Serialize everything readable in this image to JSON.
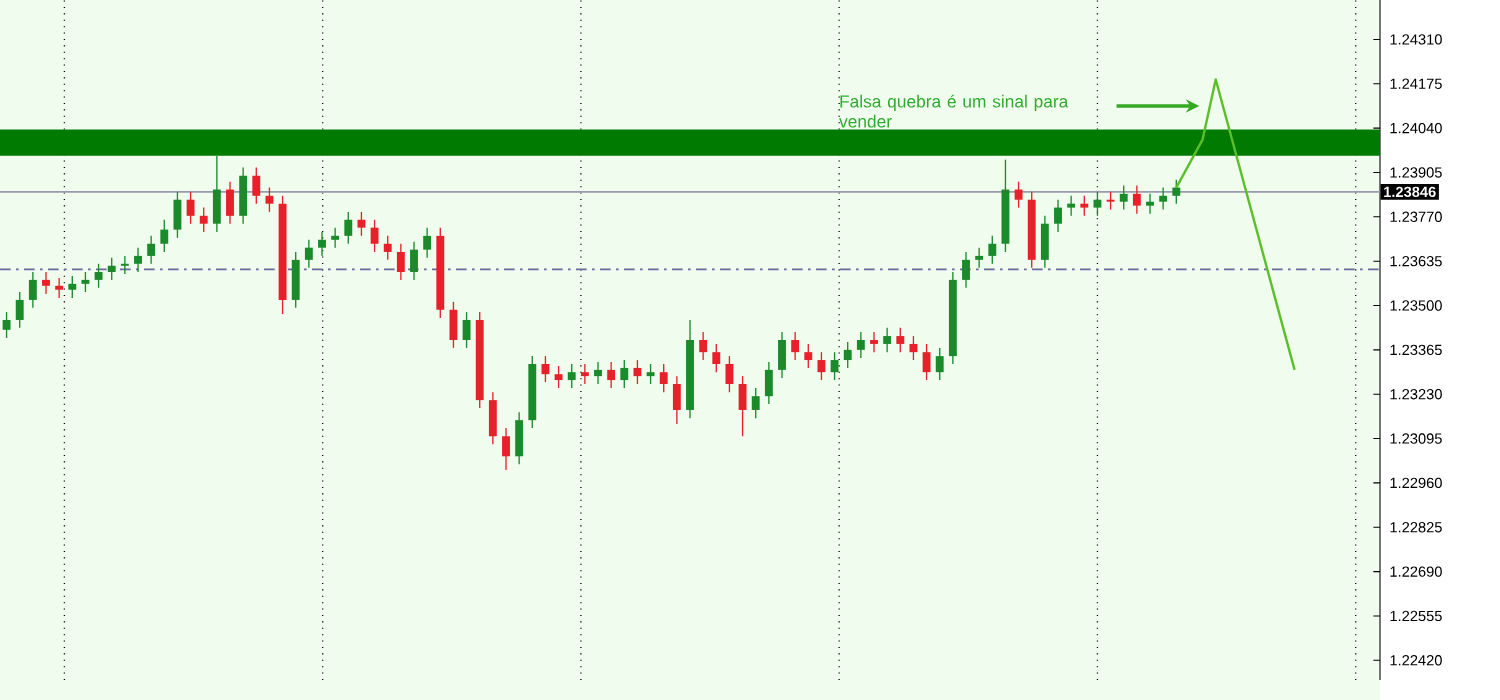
{
  "chart_data": {
    "type": "candlestick",
    "categories": [
      null,
      null,
      null,
      null,
      null,
      null,
      null,
      null,
      null,
      null,
      null,
      null,
      null,
      null,
      null,
      null,
      null,
      null,
      null,
      null,
      null,
      null,
      null,
      null,
      null,
      null,
      null,
      null,
      null,
      null,
      null,
      null,
      null,
      null,
      null,
      null,
      null,
      null,
      null,
      null,
      null,
      null,
      null,
      null,
      null,
      null,
      null,
      null,
      null,
      null,
      null,
      null,
      null,
      null,
      null,
      null,
      null,
      null,
      null,
      null,
      null,
      null,
      null,
      null,
      null,
      null,
      null,
      null,
      null,
      null,
      null,
      null,
      null,
      null,
      null,
      null,
      null,
      null,
      null,
      null,
      null,
      null,
      null,
      null,
      null,
      null,
      null,
      null,
      null,
      null,
      null,
      null,
      null,
      null,
      null,
      null,
      null,
      null,
      null,
      null,
      null,
      null,
      null,
      null,
      null
    ],
    "ohlc": [
      [
        1.23426,
        1.2348,
        1.23401,
        1.23456
      ],
      [
        1.23456,
        1.23541,
        1.23432,
        1.23517
      ],
      [
        1.23517,
        1.23602,
        1.23493,
        1.23578
      ],
      [
        1.23578,
        1.23602,
        1.23535,
        1.2356
      ],
      [
        1.2356,
        1.23584,
        1.23523,
        1.23548
      ],
      [
        1.23548,
        1.2359,
        1.23523,
        1.23566
      ],
      [
        1.23566,
        1.23602,
        1.23541,
        1.23578
      ],
      [
        1.23578,
        1.23627,
        1.23554,
        1.23602
      ],
      [
        1.23602,
        1.23645,
        1.23578,
        1.23621
      ],
      [
        1.23621,
        1.23651,
        1.23596,
        1.23627
      ],
      [
        1.23627,
        1.23676,
        1.23602,
        1.23651
      ],
      [
        1.23651,
        1.23712,
        1.23627,
        1.23688
      ],
      [
        1.23688,
        1.23761,
        1.23663,
        1.23731
      ],
      [
        1.23731,
        1.23846,
        1.23706,
        1.23822
      ],
      [
        1.23822,
        1.23846,
        1.23749,
        1.23773
      ],
      [
        1.23773,
        1.23798,
        1.23724,
        1.23749
      ],
      [
        1.23749,
        1.23956,
        1.23724,
        1.23853
      ],
      [
        1.23853,
        1.23877,
        1.23749,
        1.23773
      ],
      [
        1.23773,
        1.2392,
        1.23749,
        1.23895
      ],
      [
        1.23895,
        1.2392,
        1.2381,
        1.23834
      ],
      [
        1.23834,
        1.23859,
        1.23785,
        1.2381
      ],
      [
        1.2381,
        1.23834,
        1.23474,
        1.23517
      ],
      [
        1.23517,
        1.23663,
        1.23493,
        1.23639
      ],
      [
        1.23639,
        1.237,
        1.23615,
        1.23676
      ],
      [
        1.23676,
        1.23724,
        1.23651,
        1.237
      ],
      [
        1.237,
        1.23737,
        1.23676,
        1.23712
      ],
      [
        1.23712,
        1.23785,
        1.23688,
        1.23761
      ],
      [
        1.23761,
        1.23785,
        1.23712,
        1.23737
      ],
      [
        1.23737,
        1.23761,
        1.23663,
        1.23688
      ],
      [
        1.23688,
        1.23712,
        1.23639,
        1.23663
      ],
      [
        1.23663,
        1.23688,
        1.23578,
        1.23602
      ],
      [
        1.23602,
        1.23694,
        1.23578,
        1.2367
      ],
      [
        1.2367,
        1.23737,
        1.23645,
        1.23712
      ],
      [
        1.23712,
        1.23737,
        1.23462,
        1.23487
      ],
      [
        1.23487,
        1.23511,
        1.23371,
        1.23395
      ],
      [
        1.23395,
        1.2348,
        1.23371,
        1.23456
      ],
      [
        1.23456,
        1.2348,
        1.23188,
        1.23212
      ],
      [
        1.23212,
        1.23236,
        1.23078,
        1.23102
      ],
      [
        1.23102,
        1.23127,
        1.22999,
        1.23041
      ],
      [
        1.23041,
        1.23175,
        1.23017,
        1.23151
      ],
      [
        1.23151,
        1.23346,
        1.23127,
        1.23322
      ],
      [
        1.23322,
        1.23346,
        1.23267,
        1.23291
      ],
      [
        1.23291,
        1.23316,
        1.23249,
        1.23273
      ],
      [
        1.23273,
        1.23322,
        1.23249,
        1.23297
      ],
      [
        1.23297,
        1.23322,
        1.23261,
        1.23285
      ],
      [
        1.23285,
        1.23328,
        1.23261,
        1.23304
      ],
      [
        1.23304,
        1.23328,
        1.23249,
        1.23273
      ],
      [
        1.23273,
        1.23334,
        1.23249,
        1.2331
      ],
      [
        1.2331,
        1.23334,
        1.23261,
        1.23285
      ],
      [
        1.23285,
        1.23322,
        1.23261,
        1.23297
      ],
      [
        1.23297,
        1.23322,
        1.23236,
        1.23261
      ],
      [
        1.23261,
        1.23285,
        1.23139,
        1.23182
      ],
      [
        1.23182,
        1.23456,
        1.23157,
        1.23395
      ],
      [
        1.23395,
        1.23419,
        1.23334,
        1.23358
      ],
      [
        1.23358,
        1.23383,
        1.23297,
        1.23322
      ],
      [
        1.23322,
        1.23346,
        1.23236,
        1.23261
      ],
      [
        1.23261,
        1.23285,
        1.23102,
        1.23182
      ],
      [
        1.23182,
        1.23249,
        1.23157,
        1.23224
      ],
      [
        1.23224,
        1.23328,
        1.232,
        1.23304
      ],
      [
        1.23304,
        1.23419,
        1.23279,
        1.23395
      ],
      [
        1.23395,
        1.23419,
        1.23334,
        1.23358
      ],
      [
        1.23358,
        1.23383,
        1.2331,
        1.23334
      ],
      [
        1.23334,
        1.23358,
        1.23273,
        1.23297
      ],
      [
        1.23297,
        1.23358,
        1.23273,
        1.23334
      ],
      [
        1.23334,
        1.23389,
        1.2331,
        1.23365
      ],
      [
        1.23365,
        1.23419,
        1.2334,
        1.23395
      ],
      [
        1.23395,
        1.23419,
        1.23358,
        1.23383
      ],
      [
        1.23383,
        1.23432,
        1.23358,
        1.23407
      ],
      [
        1.23407,
        1.23432,
        1.23358,
        1.23383
      ],
      [
        1.23383,
        1.23407,
        1.23334,
        1.23358
      ],
      [
        1.23358,
        1.23383,
        1.23273,
        1.23297
      ],
      [
        1.23297,
        1.23371,
        1.23273,
        1.23346
      ],
      [
        1.23346,
        1.23602,
        1.23322,
        1.23578
      ],
      [
        1.23578,
        1.23663,
        1.23554,
        1.23639
      ],
      [
        1.23639,
        1.23676,
        1.23615,
        1.23651
      ],
      [
        1.23651,
        1.23712,
        1.23627,
        1.23688
      ],
      [
        1.23688,
        1.23944,
        1.23663,
        1.23853
      ],
      [
        1.23853,
        1.23877,
        1.23798,
        1.23822
      ],
      [
        1.23822,
        1.23846,
        1.23615,
        1.23639
      ],
      [
        1.23639,
        1.23773,
        1.23615,
        1.23749
      ],
      [
        1.23749,
        1.23822,
        1.23724,
        1.23798
      ],
      [
        1.23798,
        1.23834,
        1.23773,
        1.2381
      ],
      [
        1.2381,
        1.23834,
        1.23773,
        1.23798
      ],
      [
        1.23798,
        1.23846,
        1.23773,
        1.23822
      ],
      [
        1.23822,
        1.23846,
        1.23792,
        1.23816
      ],
      [
        1.23816,
        1.23865,
        1.23792,
        1.2384
      ],
      [
        1.2384,
        1.23865,
        1.23779,
        1.23804
      ],
      [
        1.23804,
        1.2384,
        1.23779,
        1.23816
      ],
      [
        1.23816,
        1.23859,
        1.23792,
        1.23834
      ],
      [
        1.23834,
        1.23883,
        1.2381,
        1.23859
      ],
      null,
      null,
      null,
      null,
      null,
      null,
      null,
      null,
      null,
      null,
      null,
      null,
      null,
      null,
      null
    ],
    "colors": [
      "#1a8a2a",
      "#1a8a2a",
      "#1a8a2a",
      "#e8202a",
      "#e8202a",
      "#1a8a2a",
      "#1a8a2a",
      "#1a8a2a",
      "#1a8a2a",
      "#1a8a2a",
      "#1a8a2a",
      "#1a8a2a",
      "#1a8a2a",
      "#1a8a2a",
      "#e8202a",
      "#e8202a",
      "#1a8a2a",
      "#e8202a",
      "#1a8a2a",
      "#e8202a",
      "#e8202a",
      "#e8202a",
      "#1a8a2a",
      "#1a8a2a",
      "#1a8a2a",
      "#1a8a2a",
      "#1a8a2a",
      "#e8202a",
      "#e8202a",
      "#e8202a",
      "#e8202a",
      "#1a8a2a",
      "#1a8a2a",
      "#e8202a",
      "#e8202a",
      "#1a8a2a",
      "#e8202a",
      "#e8202a",
      "#e8202a",
      "#1a8a2a",
      "#1a8a2a",
      "#e8202a",
      "#e8202a",
      "#1a8a2a",
      "#e8202a",
      "#1a8a2a",
      "#e8202a",
      "#1a8a2a",
      "#e8202a",
      "#1a8a2a",
      "#e8202a",
      "#e8202a",
      "#1a8a2a",
      "#e8202a",
      "#e8202a",
      "#e8202a",
      "#e8202a",
      "#1a8a2a",
      "#1a8a2a",
      "#1a8a2a",
      "#e8202a",
      "#e8202a",
      "#e8202a",
      "#1a8a2a",
      "#1a8a2a",
      "#1a8a2a",
      "#e8202a",
      "#1a8a2a",
      "#e8202a",
      "#e8202a",
      "#e8202a",
      "#1a8a2a",
      "#1a8a2a",
      "#1a8a2a",
      "#1a8a2a",
      "#1a8a2a",
      "#1a8a2a",
      "#e8202a",
      "#e8202a",
      "#1a8a2a",
      "#1a8a2a",
      "#1a8a2a",
      "#e8202a",
      "#1a8a2a",
      "#e8202a",
      "#1a8a2a",
      "#e8202a",
      "#1a8a2a",
      "#1a8a2a",
      "#1a8a2a",
      null,
      null,
      null,
      null,
      null,
      null,
      null,
      null,
      null,
      null,
      null,
      null,
      null,
      null,
      null
    ],
    "series": [
      {
        "type": "line",
        "color": "#5abf28",
        "values": [
          null,
          null,
          null,
          null,
          null,
          null,
          null,
          null,
          null,
          null,
          null,
          null,
          null,
          null,
          null,
          null,
          null,
          null,
          null,
          null,
          null,
          null,
          null,
          null,
          null,
          null,
          null,
          null,
          null,
          null,
          null,
          null,
          null,
          null,
          null,
          null,
          null,
          null,
          null,
          null,
          null,
          null,
          null,
          null,
          null,
          null,
          null,
          null,
          null,
          null,
          null,
          null,
          null,
          null,
          null,
          null,
          null,
          null,
          null,
          null,
          null,
          null,
          null,
          null,
          null,
          null,
          null,
          null,
          null,
          null,
          null,
          null,
          null,
          null,
          null,
          null,
          null,
          null,
          null,
          null,
          null,
          null,
          null,
          null,
          null,
          null,
          null,
          null,
          null,
          1.23859,
          null,
          1.24005,
          1.24188,
          null,
          null,
          null,
          null,
          null,
          1.23304,
          null,
          null,
          null,
          null,
          null,
          null
        ]
      }
    ],
    "ylim": [
      1.2236,
      1.2443
    ],
    "yticks": [
      {
        "value": 1.2431,
        "label": "1.24310"
      },
      {
        "value": 1.24175,
        "label": "1.24175"
      },
      {
        "value": 1.2404,
        "label": "1.24040"
      },
      {
        "value": 1.23905,
        "label": "1.23905"
      },
      {
        "value": 1.2377,
        "label": "1.23770"
      },
      {
        "value": 1.23635,
        "label": "1.23635"
      },
      {
        "value": 1.235,
        "label": "1.23500"
      },
      {
        "value": 1.23365,
        "label": "1.23365"
      },
      {
        "value": 1.2323,
        "label": "1.23230"
      },
      {
        "value": 1.23095,
        "label": "1.23095"
      },
      {
        "value": 1.2296,
        "label": "1.22960"
      },
      {
        "value": 1.22825,
        "label": "1.22825"
      },
      {
        "value": 1.2269,
        "label": "1.22690"
      },
      {
        "value": 1.22555,
        "label": "1.22555"
      },
      {
        "value": 1.2242,
        "label": "1.22420"
      }
    ],
    "bands": [
      {
        "axis": "y",
        "from": 1.23956,
        "to": 1.24036,
        "color": "#007a00"
      }
    ],
    "ref_lines": [
      {
        "axis": "y",
        "value": 1.23846,
        "label": "1.23846",
        "color": "#9a9aae",
        "line_style": "solid"
      },
      {
        "axis": "y",
        "value": 1.2361,
        "color": "#6a6aa0",
        "line_style": "dashed"
      }
    ],
    "annotations": [
      "Falsa quebra é um sinal para vender"
    ],
    "grid": "x",
    "tick_labels": "y"
  }
}
